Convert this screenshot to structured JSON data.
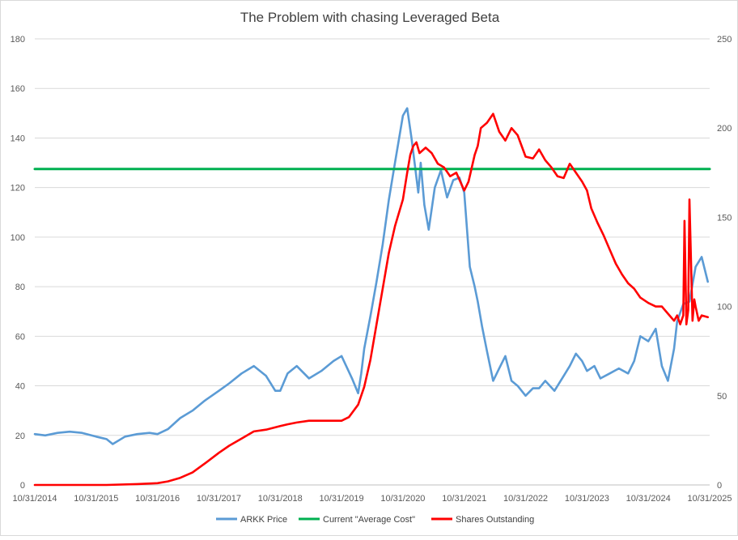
{
  "chart_data": {
    "type": "line",
    "title": "The Problem with chasing Leveraged Beta",
    "x_tick_labels": [
      "10/31/2014",
      "10/31/2015",
      "10/31/2016",
      "10/31/2017",
      "10/31/2018",
      "10/31/2019",
      "10/31/2020",
      "10/31/2021",
      "10/31/2022",
      "10/31/2023",
      "10/31/2024",
      "10/31/2025"
    ],
    "x_range": [
      2014.83,
      2025.83
    ],
    "y_left": {
      "range": [
        0,
        180
      ],
      "ticks": [
        0,
        20,
        40,
        60,
        80,
        100,
        120,
        140,
        160,
        180
      ]
    },
    "y_right": {
      "range": [
        0,
        250
      ],
      "ticks": [
        0,
        50,
        100,
        150,
        200,
        250
      ]
    },
    "grid": "horizontal",
    "legend_position": "bottom",
    "series": [
      {
        "name": "ARKK Price",
        "axis": "left",
        "color": "#5B9BD5",
        "x": [
          2014.83,
          2015.0,
          2015.2,
          2015.4,
          2015.6,
          2015.83,
          2016.0,
          2016.1,
          2016.3,
          2016.5,
          2016.7,
          2016.83,
          2017.0,
          2017.2,
          2017.4,
          2017.6,
          2017.83,
          2018.0,
          2018.2,
          2018.4,
          2018.6,
          2018.75,
          2018.83,
          2018.95,
          2019.1,
          2019.3,
          2019.5,
          2019.7,
          2019.83,
          2020.0,
          2020.1,
          2020.15,
          2020.2,
          2020.3,
          2020.4,
          2020.5,
          2020.6,
          2020.7,
          2020.83,
          2020.9,
          2020.97,
          2021.03,
          2021.08,
          2021.12,
          2021.18,
          2021.25,
          2021.35,
          2021.45,
          2021.55,
          2021.65,
          2021.75,
          2021.83,
          2021.92,
          2022.0,
          2022.05,
          2022.12,
          2022.2,
          2022.3,
          2022.4,
          2022.5,
          2022.6,
          2022.7,
          2022.83,
          2022.95,
          2023.05,
          2023.15,
          2023.3,
          2023.45,
          2023.55,
          2023.65,
          2023.75,
          2023.83,
          2023.95,
          2024.05,
          2024.2,
          2024.35,
          2024.5,
          2024.6,
          2024.7,
          2024.83,
          2024.95,
          2025.05,
          2025.15,
          2025.25,
          2025.3,
          2025.4,
          2025.5,
          2025.6,
          2025.7,
          2025.8
        ],
        "y": [
          20.5,
          20,
          21,
          21.5,
          21,
          19.5,
          18.5,
          16.5,
          19.5,
          20.5,
          21,
          20.5,
          22.5,
          27,
          30,
          34,
          38,
          41,
          45,
          48,
          44,
          38,
          38,
          45,
          48,
          43,
          46,
          50,
          52,
          43,
          37,
          45,
          55,
          68,
          82,
          97,
          115,
          130,
          149,
          152,
          140,
          128,
          118,
          130,
          113,
          103,
          120,
          127,
          116,
          123,
          124,
          118,
          88,
          80,
          74,
          64,
          54,
          42,
          47,
          52,
          42,
          40,
          36,
          39,
          39,
          42,
          38,
          44,
          48,
          53,
          50,
          46,
          48,
          43,
          45,
          47,
          45,
          50,
          60,
          58,
          63,
          48,
          42,
          55,
          66,
          73,
          74,
          88,
          92,
          82
        ]
      },
      {
        "name": "Current \"Average Cost\"",
        "axis": "left",
        "color": "#00B050",
        "x": [
          2014.83,
          2025.83
        ],
        "y": [
          127.5,
          127.5
        ]
      },
      {
        "name": "Shares Outstanding",
        "axis": "right",
        "color": "#FF0000",
        "x": [
          2014.83,
          2015.5,
          2016.0,
          2016.5,
          2016.83,
          2017.0,
          2017.2,
          2017.4,
          2017.6,
          2017.83,
          2018.0,
          2018.2,
          2018.4,
          2018.6,
          2018.83,
          2018.95,
          2019.1,
          2019.3,
          2019.5,
          2019.7,
          2019.83,
          2019.95,
          2020.1,
          2020.2,
          2020.3,
          2020.4,
          2020.5,
          2020.6,
          2020.7,
          2020.83,
          2020.9,
          2020.95,
          2021.0,
          2021.05,
          2021.1,
          2021.2,
          2021.3,
          2021.4,
          2021.5,
          2021.6,
          2021.7,
          2021.83,
          2021.9,
          2022.0,
          2022.05,
          2022.1,
          2022.2,
          2022.3,
          2022.4,
          2022.5,
          2022.6,
          2022.7,
          2022.83,
          2022.95,
          2023.05,
          2023.15,
          2023.25,
          2023.35,
          2023.45,
          2023.55,
          2023.65,
          2023.75,
          2023.83,
          2023.9,
          2024.0,
          2024.1,
          2024.2,
          2024.3,
          2024.4,
          2024.5,
          2024.6,
          2024.7,
          2024.83,
          2024.95,
          2025.05,
          2025.15,
          2025.25,
          2025.3,
          2025.35,
          2025.4,
          2025.42,
          2025.45,
          2025.48,
          2025.5,
          2025.55,
          2025.58,
          2025.6,
          2025.65,
          2025.7,
          2025.8
        ],
        "y": [
          0,
          0,
          0,
          0.5,
          1,
          2,
          4,
          7,
          12,
          18,
          22,
          26,
          30,
          31,
          33,
          34,
          35,
          36,
          36,
          36,
          36,
          38,
          45,
          55,
          70,
          90,
          110,
          130,
          145,
          160,
          175,
          185,
          190,
          192,
          186,
          189,
          186,
          180,
          178,
          173,
          175,
          165,
          170,
          185,
          190,
          200,
          203,
          208,
          198,
          193,
          200,
          196,
          184,
          183,
          188,
          182,
          178,
          173,
          172,
          180,
          175,
          170,
          165,
          155,
          147,
          140,
          132,
          124,
          118,
          113,
          110,
          105,
          102,
          100,
          100,
          96,
          92,
          95,
          90,
          95,
          148,
          90,
          98,
          160,
          92,
          104,
          100,
          92,
          95,
          94
        ]
      }
    ]
  }
}
